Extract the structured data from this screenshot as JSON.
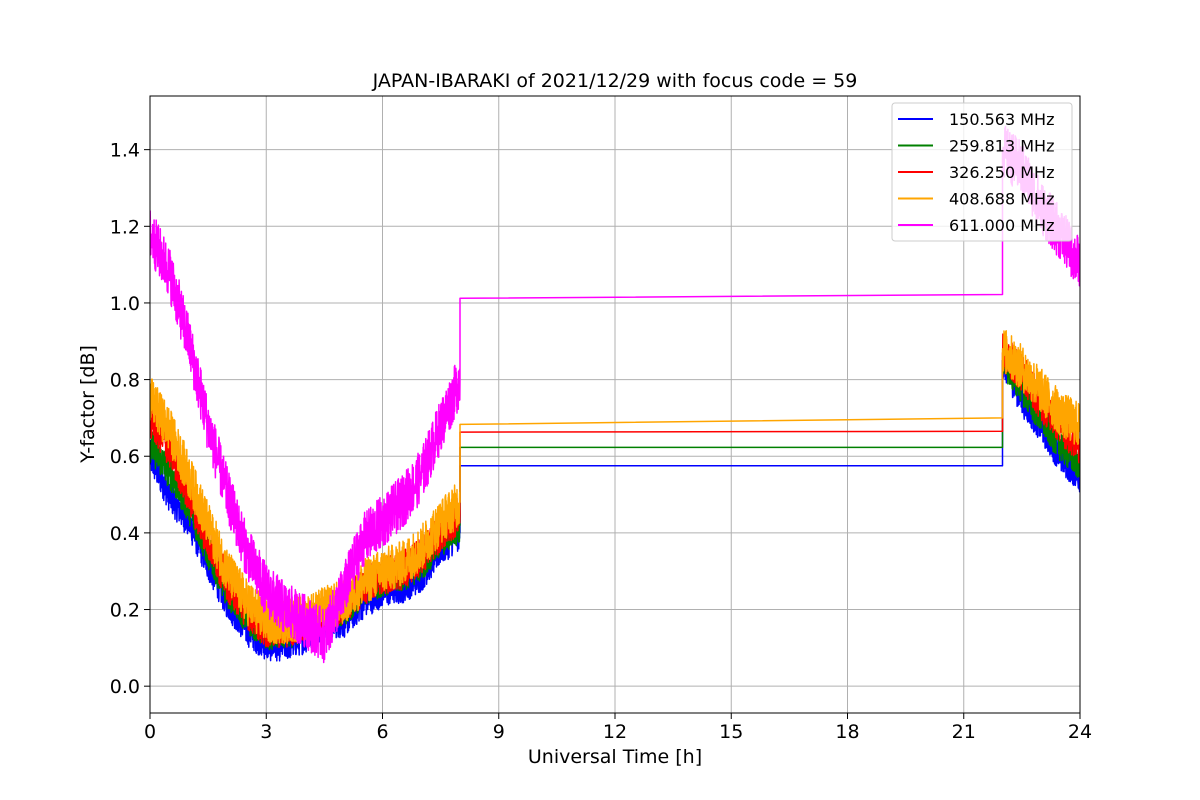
{
  "chart_data": {
    "type": "line",
    "title": "JAPAN-IBARAKI of 2021/12/29 with focus code = 59",
    "xlabel": "Universal Time [h]",
    "ylabel": "Y-factor [dB]",
    "xlim": [
      0,
      24
    ],
    "ylim": [
      -0.07,
      1.54
    ],
    "xticks": [
      0,
      3,
      6,
      9,
      12,
      15,
      18,
      21,
      24
    ],
    "yticks": [
      0.0,
      0.2,
      0.4,
      0.6,
      0.8,
      1.0,
      1.2,
      1.4
    ],
    "grid": true,
    "legend_position": "top-right",
    "series": [
      {
        "name": "150.563 MHz",
        "color": "#0000ff",
        "amplitude": 0.045,
        "points": [
          [
            0,
            0.6
          ],
          [
            0.5,
            0.5
          ],
          [
            1,
            0.43
          ],
          [
            1.5,
            0.32
          ],
          [
            2,
            0.22
          ],
          [
            2.5,
            0.15
          ],
          [
            3,
            0.11
          ],
          [
            3.5,
            0.11
          ],
          [
            4,
            0.13
          ],
          [
            4.5,
            0.17
          ],
          [
            5,
            0.17
          ],
          [
            5.5,
            0.22
          ],
          [
            6,
            0.25
          ],
          [
            6.5,
            0.26
          ],
          [
            7,
            0.29
          ],
          [
            7.5,
            0.36
          ],
          [
            8,
            0.4
          ],
          [
            8,
            0.575
          ],
          [
            22,
            0.575
          ],
          [
            22,
            0.85
          ],
          [
            22.5,
            0.75
          ],
          [
            23,
            0.68
          ],
          [
            23.5,
            0.6
          ],
          [
            24,
            0.55
          ]
        ]
      },
      {
        "name": "259.813 MHz",
        "color": "#008000",
        "amplitude": 0.045,
        "points": [
          [
            0,
            0.63
          ],
          [
            0.5,
            0.56
          ],
          [
            1,
            0.47
          ],
          [
            1.5,
            0.35
          ],
          [
            2,
            0.25
          ],
          [
            2.5,
            0.18
          ],
          [
            3,
            0.14
          ],
          [
            3.5,
            0.14
          ],
          [
            4,
            0.16
          ],
          [
            4.5,
            0.19
          ],
          [
            5,
            0.2
          ],
          [
            5.5,
            0.25
          ],
          [
            6,
            0.28
          ],
          [
            6.5,
            0.29
          ],
          [
            7,
            0.32
          ],
          [
            7.5,
            0.38
          ],
          [
            8,
            0.42
          ],
          [
            8,
            0.623
          ],
          [
            22,
            0.623
          ],
          [
            22,
            0.85
          ],
          [
            22.5,
            0.78
          ],
          [
            23,
            0.7
          ],
          [
            23.5,
            0.63
          ],
          [
            24,
            0.58
          ]
        ]
      },
      {
        "name": "326.250 MHz",
        "color": "#ff0000",
        "amplitude": 0.05,
        "points": [
          [
            0,
            0.7
          ],
          [
            0.5,
            0.62
          ],
          [
            1,
            0.5
          ],
          [
            1.5,
            0.38
          ],
          [
            2,
            0.27
          ],
          [
            2.5,
            0.2
          ],
          [
            3,
            0.15
          ],
          [
            3.5,
            0.15
          ],
          [
            4,
            0.17
          ],
          [
            4.5,
            0.19
          ],
          [
            5,
            0.21
          ],
          [
            5.5,
            0.26
          ],
          [
            6,
            0.29
          ],
          [
            6.5,
            0.3
          ],
          [
            7,
            0.34
          ],
          [
            7.5,
            0.4
          ],
          [
            8,
            0.45
          ],
          [
            8,
            0.663
          ],
          [
            22,
            0.665
          ],
          [
            22,
            0.87
          ],
          [
            22.5,
            0.82
          ],
          [
            23,
            0.74
          ],
          [
            23.5,
            0.68
          ],
          [
            24,
            0.63
          ]
        ]
      },
      {
        "name": "408.688 MHz",
        "color": "#ffa500",
        "amplitude": 0.06,
        "points": [
          [
            0,
            0.75
          ],
          [
            0.5,
            0.67
          ],
          [
            1,
            0.55
          ],
          [
            1.5,
            0.42
          ],
          [
            2,
            0.3
          ],
          [
            2.5,
            0.22
          ],
          [
            3,
            0.17
          ],
          [
            3.5,
            0.17
          ],
          [
            4,
            0.18
          ],
          [
            4.5,
            0.2
          ],
          [
            5,
            0.22
          ],
          [
            5.5,
            0.27
          ],
          [
            6,
            0.3
          ],
          [
            6.5,
            0.32
          ],
          [
            7,
            0.36
          ],
          [
            7.5,
            0.43
          ],
          [
            8,
            0.48
          ],
          [
            8,
            0.683
          ],
          [
            22,
            0.7
          ],
          [
            22,
            0.88
          ],
          [
            22.5,
            0.83
          ],
          [
            23,
            0.77
          ],
          [
            23.5,
            0.71
          ],
          [
            24,
            0.68
          ]
        ]
      },
      {
        "name": "611.000 MHz",
        "color": "#ff00ff",
        "amplitude": 0.07,
        "points": [
          [
            0,
            1.18
          ],
          [
            0.5,
            1.08
          ],
          [
            1,
            0.9
          ],
          [
            1.5,
            0.68
          ],
          [
            2,
            0.5
          ],
          [
            2.5,
            0.35
          ],
          [
            3,
            0.25
          ],
          [
            3.5,
            0.2
          ],
          [
            4,
            0.17
          ],
          [
            4.5,
            0.13
          ],
          [
            5,
            0.25
          ],
          [
            5.5,
            0.38
          ],
          [
            6,
            0.43
          ],
          [
            6.5,
            0.48
          ],
          [
            7,
            0.55
          ],
          [
            7.5,
            0.68
          ],
          [
            8,
            0.8
          ],
          [
            8,
            1.012
          ],
          [
            22,
            1.022
          ],
          [
            22,
            1.4
          ],
          [
            22.5,
            1.35
          ],
          [
            23,
            1.25
          ],
          [
            23.5,
            1.18
          ],
          [
            24,
            1.1
          ]
        ]
      }
    ]
  }
}
